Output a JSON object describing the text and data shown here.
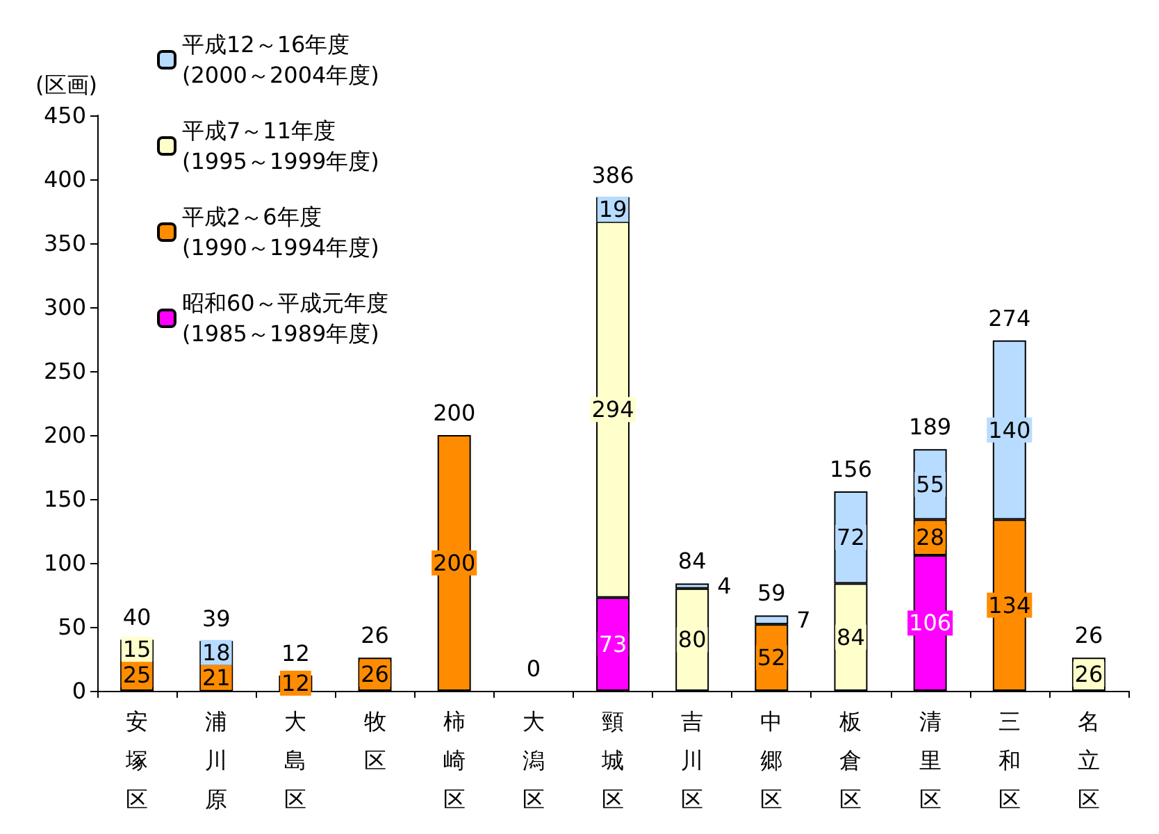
{
  "chart_data": {
    "type": "bar",
    "stacked": true,
    "ylabel": "(区画)",
    "categories": [
      "安塚区",
      "浦川原",
      "大島区",
      "牧区",
      "柿崎区",
      "大潟区",
      "頸城区",
      "吉川区",
      "中郷区",
      "板倉区",
      "清里区",
      "三和区",
      "名立区"
    ],
    "series": [
      {
        "name": "昭和60～平成元年度\n(1985～1989年度)",
        "color": "#ff00ff",
        "values": [
          null,
          null,
          null,
          null,
          null,
          null,
          73,
          null,
          null,
          null,
          106,
          null,
          null
        ]
      },
      {
        "name": "平成2～6年度\n(1990～1994年度)",
        "color": "#ff8c00",
        "values": [
          25,
          21,
          12,
          26,
          200,
          null,
          null,
          null,
          52,
          null,
          28,
          134,
          null
        ]
      },
      {
        "name": "平成7～11年度\n(1995～1999年度)",
        "color": "#ffffcc",
        "values": [
          15,
          null,
          null,
          null,
          null,
          null,
          294,
          80,
          null,
          84,
          null,
          null,
          26
        ]
      },
      {
        "name": "平成12～16年度\n(2000～2004年度)",
        "color": "#b8dcff",
        "values": [
          null,
          18,
          null,
          null,
          null,
          null,
          19,
          4,
          7,
          72,
          55,
          140,
          null
        ]
      }
    ],
    "totals": [
      "40",
      "39",
      "12",
      "26",
      "200",
      "0",
      "386",
      "84",
      "59",
      "156",
      "189",
      "274",
      "26"
    ],
    "data_labels": true,
    "ylim": [
      0,
      450
    ],
    "yticks": [
      0,
      50,
      100,
      150,
      200,
      250,
      300,
      350,
      400,
      450
    ],
    "grid": false,
    "legend": "top left"
  }
}
